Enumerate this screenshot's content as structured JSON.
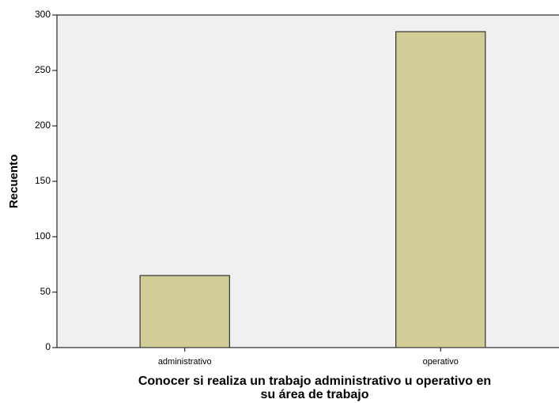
{
  "chart_data": {
    "type": "bar",
    "xlabel": [
      "Conocer si realiza un trabajo administrativo u operativo en",
      "su área de trabajo"
    ],
    "ylabel": "Recuento",
    "categories": [
      "administrativo",
      "operativo"
    ],
    "values": [
      65,
      285
    ],
    "color": "#d2cc96",
    "ylim": [
      0,
      300
    ],
    "yticks": [
      0,
      50,
      100,
      150,
      200,
      250,
      300
    ],
    "grid": false
  }
}
